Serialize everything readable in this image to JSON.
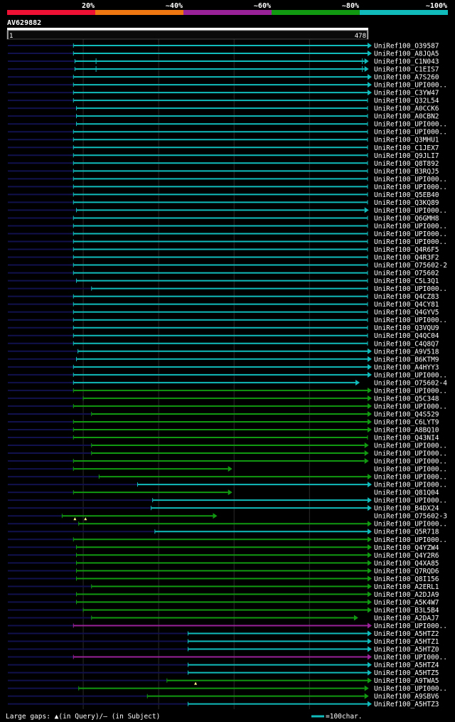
{
  "scale_labels": [
    "20%",
    "~40%",
    "~60%",
    "~80%",
    "~100%"
  ],
  "scale_colors": [
    "#ee1133",
    "#ee7711",
    "#992299",
    "#119911",
    "#11bbbb"
  ],
  "query": {
    "name": "AV629882",
    "start_label": "1",
    "end_label": "478",
    "length": 478
  },
  "footer": {
    "gaps_legend": "Large gaps: ▲(in Query)/– (in Subject)",
    "scale_legend": "=100char."
  },
  "colors": {
    "cyan": "#11bbbb",
    "green": "#119911",
    "purple": "#992299",
    "lead": "#11114d",
    "grid": "#2a2a2a"
  },
  "hits": [
    {
      "label": "UniRef100_O39587",
      "start": 88,
      "end": 478,
      "color": "cyan",
      "arrow": true
    },
    {
      "label": "UniRef100_A8JQA5",
      "start": 88,
      "end": 478,
      "color": "cyan",
      "arrow": true
    },
    {
      "label": "UniRef100_C1N043",
      "start": 90,
      "end": 474,
      "color": "cyan",
      "arrow": true,
      "sub_start": 118,
      "sub_end": 471
    },
    {
      "label": "UniRef100_C1EIS7",
      "start": 90,
      "end": 474,
      "color": "cyan",
      "arrow": true,
      "sub_start": 118,
      "sub_end": 471
    },
    {
      "label": "UniRef100_A7S260",
      "start": 88,
      "end": 478,
      "color": "cyan",
      "arrow": true
    },
    {
      "label": "UniRef100_UPI000..",
      "start": 88,
      "end": 478,
      "color": "cyan",
      "arrow": true
    },
    {
      "label": "UniRef100_C3YW47",
      "start": 88,
      "end": 478,
      "color": "cyan",
      "arrow": true
    },
    {
      "label": "UniRef100_Q32L54",
      "start": 88,
      "end": 478,
      "color": "cyan",
      "arrow": false
    },
    {
      "label": "UniRef100_A0CCK6",
      "start": 92,
      "end": 478,
      "color": "cyan",
      "arrow": false
    },
    {
      "label": "UniRef100_A0CBN2",
      "start": 92,
      "end": 478,
      "color": "cyan",
      "arrow": false
    },
    {
      "label": "UniRef100_UPI000..",
      "start": 92,
      "end": 478,
      "color": "cyan",
      "arrow": false
    },
    {
      "label": "UniRef100_UPI000..",
      "start": 88,
      "end": 478,
      "color": "cyan",
      "arrow": false
    },
    {
      "label": "UniRef100_Q3MHU1",
      "start": 88,
      "end": 478,
      "color": "cyan",
      "arrow": false
    },
    {
      "label": "UniRef100_C1JEX7",
      "start": 88,
      "end": 478,
      "color": "cyan",
      "arrow": false
    },
    {
      "label": "UniRef100_Q9JLI7",
      "start": 88,
      "end": 478,
      "color": "cyan",
      "arrow": false
    },
    {
      "label": "UniRef100_Q8T892",
      "start": 88,
      "end": 478,
      "color": "cyan",
      "arrow": false
    },
    {
      "label": "UniRef100_B3RQJ5",
      "start": 88,
      "end": 478,
      "color": "cyan",
      "arrow": false
    },
    {
      "label": "UniRef100_UPI000..",
      "start": 88,
      "end": 478,
      "color": "cyan",
      "arrow": false
    },
    {
      "label": "UniRef100_UPI000..",
      "start": 88,
      "end": 478,
      "color": "cyan",
      "arrow": false
    },
    {
      "label": "UniRef100_Q5EB40",
      "start": 88,
      "end": 478,
      "color": "cyan",
      "arrow": false
    },
    {
      "label": "UniRef100_Q3KQ89",
      "start": 88,
      "end": 478,
      "color": "cyan",
      "arrow": false
    },
    {
      "label": "UniRef100_UPI000..",
      "start": 92,
      "end": 474,
      "color": "cyan",
      "arrow": true
    },
    {
      "label": "UniRef100_Q6GMH8",
      "start": 88,
      "end": 478,
      "color": "cyan",
      "arrow": false
    },
    {
      "label": "UniRef100_UPI000..",
      "start": 88,
      "end": 478,
      "color": "cyan",
      "arrow": false
    },
    {
      "label": "UniRef100_UPI000..",
      "start": 88,
      "end": 478,
      "color": "cyan",
      "arrow": false
    },
    {
      "label": "UniRef100_UPI000..",
      "start": 88,
      "end": 478,
      "color": "cyan",
      "arrow": false
    },
    {
      "label": "UniRef100_Q4R6F5",
      "start": 88,
      "end": 478,
      "color": "cyan",
      "arrow": false
    },
    {
      "label": "UniRef100_Q4R3F2",
      "start": 88,
      "end": 478,
      "color": "cyan",
      "arrow": false
    },
    {
      "label": "UniRef100_O75602-2",
      "start": 88,
      "end": 478,
      "color": "cyan",
      "arrow": false
    },
    {
      "label": "UniRef100_O75602",
      "start": 88,
      "end": 478,
      "color": "cyan",
      "arrow": false
    },
    {
      "label": "UniRef100_C5L3Q1",
      "start": 92,
      "end": 478,
      "color": "cyan",
      "arrow": false
    },
    {
      "label": "UniRef100_UPI000..",
      "start": 112,
      "end": 478,
      "color": "cyan",
      "arrow": false
    },
    {
      "label": "UniRef100_Q4CZ83",
      "start": 88,
      "end": 478,
      "color": "cyan",
      "arrow": false
    },
    {
      "label": "UniRef100_Q4CY81",
      "start": 88,
      "end": 478,
      "color": "cyan",
      "arrow": false
    },
    {
      "label": "UniRef100_Q4GYV5",
      "start": 88,
      "end": 478,
      "color": "cyan",
      "arrow": false
    },
    {
      "label": "UniRef100_UPI000..",
      "start": 88,
      "end": 478,
      "color": "cyan",
      "arrow": false
    },
    {
      "label": "UniRef100_Q3VQU9",
      "start": 88,
      "end": 478,
      "color": "cyan",
      "arrow": false
    },
    {
      "label": "UniRef100_Q4QC04",
      "start": 88,
      "end": 478,
      "color": "cyan",
      "arrow": false
    },
    {
      "label": "UniRef100_C4Q8Q7",
      "start": 88,
      "end": 478,
      "color": "cyan",
      "arrow": false
    },
    {
      "label": "UniRef100_A9V518",
      "start": 94,
      "end": 478,
      "color": "cyan",
      "arrow": true
    },
    {
      "label": "UniRef100_B6KTM9",
      "start": 92,
      "end": 478,
      "color": "cyan",
      "arrow": true
    },
    {
      "label": "UniRef100_A4HYY3",
      "start": 88,
      "end": 478,
      "color": "cyan",
      "arrow": true
    },
    {
      "label": "UniRef100_UPI000..",
      "start": 88,
      "end": 478,
      "color": "cyan",
      "arrow": true
    },
    {
      "label": "UniRef100_O75602-4",
      "start": 88,
      "end": 462,
      "color": "cyan",
      "arrow": true
    },
    {
      "label": "UniRef100_UPI000..",
      "start": 88,
      "end": 478,
      "color": "green",
      "arrow": true
    },
    {
      "label": "UniRef100_Q5C348",
      "start": 101,
      "end": 478,
      "color": "green",
      "arrow": true
    },
    {
      "label": "UniRef100_UPI000..",
      "start": 88,
      "end": 478,
      "color": "green",
      "arrow": true
    },
    {
      "label": "UniRef100_Q4S529",
      "start": 112,
      "end": 478,
      "color": "green",
      "arrow": true
    },
    {
      "label": "UniRef100_C6LYT9",
      "start": 88,
      "end": 478,
      "color": "green",
      "arrow": true
    },
    {
      "label": "UniRef100_A8BQ10",
      "start": 88,
      "end": 478,
      "color": "green",
      "arrow": true
    },
    {
      "label": "UniRef100_Q43NI4",
      "start": 88,
      "end": 478,
      "color": "green",
      "arrow": false
    },
    {
      "label": "UniRef100_UPI000..",
      "start": 112,
      "end": 474,
      "color": "green",
      "arrow": true
    },
    {
      "label": "UniRef100_UPI000..",
      "start": 112,
      "end": 474,
      "color": "green",
      "arrow": true
    },
    {
      "label": "UniRef100_UPI000..",
      "start": 88,
      "end": 474,
      "color": "green",
      "arrow": true
    },
    {
      "label": "UniRef100_UPI000..",
      "start": 88,
      "end": 293,
      "color": "green",
      "arrow": true
    },
    {
      "label": "UniRef100_UPI000..",
      "start": 122,
      "end": 478,
      "color": "green",
      "arrow": true
    },
    {
      "label": "UniRef100_UPI000..",
      "start": 173,
      "end": 478,
      "color": "cyan",
      "arrow": true
    },
    {
      "label": "UniRef100_Q81Q04",
      "start": 88,
      "end": 293,
      "color": "green",
      "arrow": true
    },
    {
      "label": "UniRef100_UPI000..",
      "start": 193,
      "end": 478,
      "color": "cyan",
      "arrow": true
    },
    {
      "label": "UniRef100_B4DX24",
      "start": 191,
      "end": 478,
      "color": "cyan",
      "arrow": true
    },
    {
      "label": "UniRef100_O75602-3",
      "start": 73,
      "end": 273,
      "color": "green",
      "arrow": true,
      "query_gaps": [
        90,
        104
      ]
    },
    {
      "label": "UniRef100_UPI000..",
      "start": 95,
      "end": 478,
      "color": "green",
      "arrow": true
    },
    {
      "label": "UniRef100_Q5R718",
      "start": 196,
      "end": 478,
      "color": "cyan",
      "arrow": true
    },
    {
      "label": "UniRef100_UPI000..",
      "start": 88,
      "end": 478,
      "color": "green",
      "arrow": true
    },
    {
      "label": "UniRef100_Q4YZW4",
      "start": 92,
      "end": 478,
      "color": "green",
      "arrow": true
    },
    {
      "label": "UniRef100_Q4Y2R6",
      "start": 92,
      "end": 478,
      "color": "green",
      "arrow": true
    },
    {
      "label": "UniRef100_Q4XA85",
      "start": 92,
      "end": 478,
      "color": "green",
      "arrow": true
    },
    {
      "label": "UniRef100_Q7RQD6",
      "start": 92,
      "end": 478,
      "color": "green",
      "arrow": true
    },
    {
      "label": "UniRef100_Q8I156",
      "start": 92,
      "end": 478,
      "color": "green",
      "arrow": true
    },
    {
      "label": "UniRef100_A2ERL1",
      "start": 112,
      "end": 478,
      "color": "green",
      "arrow": true
    },
    {
      "label": "UniRef100_A2DJA9",
      "start": 92,
      "end": 478,
      "color": "green",
      "arrow": true
    },
    {
      "label": "UniRef100_A5K4W7",
      "start": 92,
      "end": 478,
      "color": "green",
      "arrow": true
    },
    {
      "label": "UniRef100_B3L5B4",
      "start": 101,
      "end": 478,
      "color": "green",
      "arrow": true
    },
    {
      "label": "UniRef100_A2DAJ7",
      "start": 112,
      "end": 460,
      "color": "green",
      "arrow": true
    },
    {
      "label": "UniRef100_UPI000..",
      "start": 88,
      "end": 478,
      "color": "purple",
      "arrow": true
    },
    {
      "label": "UniRef100_A5HTZ2",
      "start": 240,
      "end": 478,
      "color": "cyan",
      "arrow": true
    },
    {
      "label": "UniRef100_A5HTZ1",
      "start": 240,
      "end": 478,
      "color": "cyan",
      "arrow": true
    },
    {
      "label": "UniRef100_A5HTZ0",
      "start": 240,
      "end": 478,
      "color": "cyan",
      "arrow": true
    },
    {
      "label": "UniRef100_UPI000..",
      "start": 88,
      "end": 478,
      "color": "purple",
      "arrow": true
    },
    {
      "label": "UniRef100_A5HTZ4",
      "start": 240,
      "end": 478,
      "color": "cyan",
      "arrow": true
    },
    {
      "label": "UniRef100_A5HTZ5",
      "start": 240,
      "end": 478,
      "color": "cyan",
      "arrow": true
    },
    {
      "label": "UniRef100_A9TWA5",
      "start": 212,
      "end": 478,
      "color": "green",
      "arrow": true,
      "query_gaps": [
        250
      ]
    },
    {
      "label": "UniRef100_UPI000..",
      "start": 95,
      "end": 474,
      "color": "green",
      "arrow": true
    },
    {
      "label": "UniRef100_A9SBV6",
      "start": 186,
      "end": 474,
      "color": "green",
      "arrow": true
    },
    {
      "label": "UniRef100_A5HTZ3",
      "start": 240,
      "end": 478,
      "color": "cyan",
      "arrow": true
    }
  ]
}
